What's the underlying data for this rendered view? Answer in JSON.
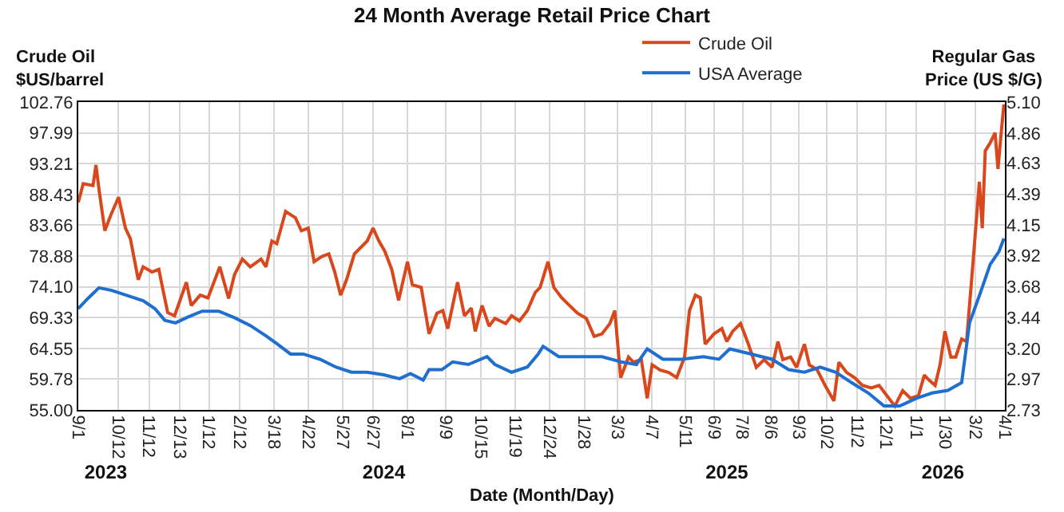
{
  "chart_data": {
    "type": "line",
    "title": "24 Month Average Retail Price Chart",
    "xlabel": "Date (Month/Day)",
    "ylabel": "Crude Oil\n$US/barrel",
    "y2label": "Regular Gas\nPrice (US $/G)",
    "xlim": [
      "2023-09-01",
      "2026-04-01"
    ],
    "xticks": [
      {
        "value": "2023-09-01",
        "label": "9/1"
      },
      {
        "value": "2023-10-12",
        "label": "10/12"
      },
      {
        "value": "2023-11-12",
        "label": "11/12"
      },
      {
        "value": "2023-12-13",
        "label": "12/13"
      },
      {
        "value": "2024-01-12",
        "label": "1/12"
      },
      {
        "value": "2024-02-12",
        "label": "2/12"
      },
      {
        "value": "2024-03-18",
        "label": "3/18"
      },
      {
        "value": "2024-04-22",
        "label": "4/22"
      },
      {
        "value": "2024-05-27",
        "label": "5/27"
      },
      {
        "value": "2024-06-27",
        "label": "6/27"
      },
      {
        "value": "2024-08-01",
        "label": "8/1"
      },
      {
        "value": "2024-09-09",
        "label": "9/9"
      },
      {
        "value": "2024-10-15",
        "label": "10/15"
      },
      {
        "value": "2024-11-19",
        "label": "11/19"
      },
      {
        "value": "2024-12-24",
        "label": "12/24"
      },
      {
        "value": "2025-01-28",
        "label": "1/28"
      },
      {
        "value": "2025-03-03",
        "label": "3/3"
      },
      {
        "value": "2025-04-07",
        "label": "4/7"
      },
      {
        "value": "2025-05-11",
        "label": "5/11"
      },
      {
        "value": "2025-06-09",
        "label": "6/9"
      },
      {
        "value": "2025-07-08",
        "label": "7/8"
      },
      {
        "value": "2025-08-06",
        "label": "8/6"
      },
      {
        "value": "2025-09-03",
        "label": "9/3"
      },
      {
        "value": "2025-10-02",
        "label": "10/2"
      },
      {
        "value": "2025-11-02",
        "label": "11/2"
      },
      {
        "value": "2025-12-01",
        "label": "12/1"
      },
      {
        "value": "2026-01-01",
        "label": "1/1"
      },
      {
        "value": "2026-01-30",
        "label": "1/30"
      },
      {
        "value": "2026-03-02",
        "label": "3/2"
      },
      {
        "value": "2026-04-01",
        "label": "4/1"
      }
    ],
    "x2lim": [
      "2023-09-01",
      "2026-04-01"
    ],
    "x2ticks": [
      {
        "value": "2023-09-29",
        "label": "2023"
      },
      {
        "value": "2024-07-08",
        "label": "2024"
      },
      {
        "value": "2025-06-22",
        "label": "2025"
      },
      {
        "value": "2026-01-28",
        "label": "2026"
      }
    ],
    "ylim": [
      55.0,
      102.76
    ],
    "yticks": [
      {
        "value": 55.0,
        "label": "55.00"
      },
      59.78,
      64.55,
      69.33,
      {
        "value": 74.1,
        "label": "74.10"
      },
      78.88,
      83.66,
      88.43,
      93.21,
      97.99,
      102.76
    ],
    "y2lim": [
      2.73,
      5.1
    ],
    "y2ticks": [
      2.73,
      2.97,
      {
        "value": 3.2,
        "label": "3.20"
      },
      3.44,
      3.68,
      3.92,
      4.15,
      4.39,
      4.63,
      4.86,
      {
        "value": 5.1,
        "label": "5.10"
      }
    ],
    "grid": true,
    "legend": "top right",
    "marker": "none",
    "line_style": "solid",
    "series": [
      {
        "name": "Crude Oil",
        "color": "#d9481c",
        "x": [
          "2023-09-01",
          "2023-09-06",
          "2023-09-16",
          "2023-09-19",
          "2023-09-22",
          "2023-09-28",
          "2023-10-04",
          "2023-10-12",
          "2023-10-19",
          "2023-10-24",
          "2023-11-01",
          "2023-11-06",
          "2023-11-15",
          "2023-11-22",
          "2023-11-25",
          "2023-12-01",
          "2023-12-08",
          "2023-12-20",
          "2023-12-25",
          "2024-01-03",
          "2024-01-11",
          "2024-01-23",
          "2024-02-01",
          "2024-02-07",
          "2024-02-15",
          "2024-02-23",
          "2024-03-05",
          "2024-03-10",
          "2024-03-16",
          "2024-03-21",
          "2024-03-30",
          "2024-04-09",
          "2024-04-15",
          "2024-04-22",
          "2024-04-28",
          "2024-05-06",
          "2024-05-13",
          "2024-05-19",
          "2024-05-25",
          "2024-05-31",
          "2024-06-08",
          "2024-06-21",
          "2024-06-27",
          "2024-07-03",
          "2024-07-09",
          "2024-07-16",
          "2024-07-23",
          "2024-08-01",
          "2024-08-06",
          "2024-08-15",
          "2024-08-23",
          "2024-08-31",
          "2024-09-06",
          "2024-09-11",
          "2024-09-21",
          "2024-09-28",
          "2024-10-05",
          "2024-10-09",
          "2024-10-16",
          "2024-10-23",
          "2024-10-29",
          "2024-11-09",
          "2024-11-15",
          "2024-11-23",
          "2024-12-01",
          "2024-12-09",
          "2024-12-14",
          "2024-12-22",
          "2024-12-28",
          "2025-01-05",
          "2025-01-13",
          "2025-01-21",
          "2025-01-30",
          "2025-02-07",
          "2025-02-15",
          "2025-02-23",
          "2025-02-28",
          "2025-03-06",
          "2025-03-14",
          "2025-03-19",
          "2025-03-27",
          "2025-04-02",
          "2025-04-07",
          "2025-04-15",
          "2025-04-24",
          "2025-05-02",
          "2025-05-10",
          "2025-05-15",
          "2025-05-21",
          "2025-05-26",
          "2025-05-31",
          "2025-06-09",
          "2025-06-17",
          "2025-06-22",
          "2025-06-28",
          "2025-07-06",
          "2025-07-14",
          "2025-07-22",
          "2025-07-30",
          "2025-08-07",
          "2025-08-13",
          "2025-08-18",
          "2025-08-26",
          "2025-09-01",
          "2025-09-09",
          "2025-09-14",
          "2025-09-22",
          "2025-09-30",
          "2025-10-09",
          "2025-10-14",
          "2025-10-22",
          "2025-10-30",
          "2025-11-07",
          "2025-11-16",
          "2025-11-24",
          "2025-12-02",
          "2025-12-10",
          "2025-12-18",
          "2025-12-26",
          "2026-01-03",
          "2026-01-09",
          "2026-01-14",
          "2026-01-20",
          "2026-01-25",
          "2026-01-30",
          "2026-02-05",
          "2026-02-10",
          "2026-02-16",
          "2026-02-21",
          "2026-02-27",
          "2026-03-06",
          "2026-03-09",
          "2026-03-12",
          "2026-03-17",
          "2026-03-22",
          "2026-03-25",
          "2026-03-28",
          "2026-03-31"
        ],
        "values": [
          87.2,
          90.1,
          89.8,
          93.0,
          89.3,
          82.8,
          85.2,
          88.0,
          83.2,
          81.6,
          75.2,
          77.2,
          76.4,
          76.8,
          74.5,
          70.1,
          69.6,
          74.8,
          71.2,
          72.8,
          72.4,
          77.2,
          72.3,
          76.0,
          78.4,
          77.2,
          78.4,
          77.2,
          81.2,
          80.8,
          85.8,
          84.8,
          82.8,
          83.2,
          78.0,
          78.8,
          79.2,
          76.4,
          72.8,
          75.2,
          79.2,
          81.2,
          83.2,
          81.2,
          79.6,
          76.8,
          72.0,
          78.0,
          74.4,
          74.0,
          66.8,
          70.0,
          70.4,
          67.6,
          74.8,
          69.6,
          70.8,
          67.2,
          71.2,
          68.0,
          69.2,
          68.4,
          69.6,
          68.8,
          70.4,
          73.2,
          74.0,
          78.0,
          74.0,
          72.4,
          71.2,
          70.0,
          69.2,
          66.4,
          66.8,
          68.4,
          70.4,
          60.0,
          63.2,
          62.4,
          62.8,
          56.8,
          62.0,
          61.2,
          60.8,
          60.0,
          63.2,
          70.4,
          72.8,
          72.4,
          65.2,
          66.8,
          67.6,
          65.6,
          67.2,
          68.4,
          65.2,
          61.6,
          62.8,
          61.6,
          65.6,
          62.8,
          63.2,
          61.6,
          65.2,
          62.0,
          61.2,
          58.8,
          56.4,
          62.4,
          60.8,
          60.0,
          58.8,
          58.4,
          58.8,
          57.2,
          55.6,
          58.0,
          56.8,
          57.2,
          60.4,
          59.6,
          58.8,
          62.0,
          67.2,
          63.2,
          63.2,
          66.0,
          65.6,
          76.8,
          90.4,
          83.2,
          95.2,
          96.4,
          98.0,
          92.4,
          97.6,
          102.4
        ]
      },
      {
        "name": "USA Average",
        "color": "#1f6fd1",
        "axis": "y2",
        "x": [
          "2023-09-01",
          "2023-09-11",
          "2023-09-22",
          "2023-10-05",
          "2023-10-21",
          "2023-11-06",
          "2023-11-18",
          "2023-11-28",
          "2023-12-09",
          "2023-12-20",
          "2024-01-05",
          "2024-01-22",
          "2024-02-07",
          "2024-02-23",
          "2024-03-10",
          "2024-03-21",
          "2024-04-04",
          "2024-04-17",
          "2024-05-04",
          "2024-05-20",
          "2024-06-05",
          "2024-06-21",
          "2024-07-08",
          "2024-07-24",
          "2024-08-04",
          "2024-08-17",
          "2024-08-23",
          "2024-09-05",
          "2024-09-16",
          "2024-10-02",
          "2024-10-21",
          "2024-10-29",
          "2024-11-15",
          "2024-12-01",
          "2024-12-12",
          "2024-12-17",
          "2025-01-02",
          "2025-01-24",
          "2025-02-15",
          "2025-03-06",
          "2025-03-22",
          "2025-04-02",
          "2025-04-18",
          "2025-05-07",
          "2025-05-29",
          "2025-06-14",
          "2025-06-25",
          "2025-07-17",
          "2025-08-07",
          "2025-08-24",
          "2025-09-09",
          "2025-09-25",
          "2025-10-11",
          "2025-10-27",
          "2025-11-13",
          "2025-11-29",
          "2025-12-15",
          "2026-01-01",
          "2026-01-17",
          "2026-02-02",
          "2026-02-16",
          "2026-02-24",
          "2026-03-07",
          "2026-03-17",
          "2026-03-26",
          "2026-03-31"
        ],
        "values": [
          3.51,
          3.59,
          3.67,
          3.65,
          3.61,
          3.57,
          3.51,
          3.42,
          3.4,
          3.44,
          3.49,
          3.49,
          3.44,
          3.38,
          3.3,
          3.24,
          3.16,
          3.16,
          3.12,
          3.06,
          3.02,
          3.02,
          3.0,
          2.97,
          3.01,
          2.96,
          3.04,
          3.04,
          3.1,
          3.08,
          3.14,
          3.08,
          3.02,
          3.06,
          3.16,
          3.22,
          3.14,
          3.14,
          3.14,
          3.1,
          3.08,
          3.2,
          3.12,
          3.12,
          3.14,
          3.12,
          3.2,
          3.16,
          3.12,
          3.04,
          3.02,
          3.06,
          3.02,
          2.94,
          2.86,
          2.76,
          2.76,
          2.82,
          2.86,
          2.88,
          2.94,
          3.4,
          3.63,
          3.85,
          3.95,
          4.05
        ]
      }
    ]
  }
}
